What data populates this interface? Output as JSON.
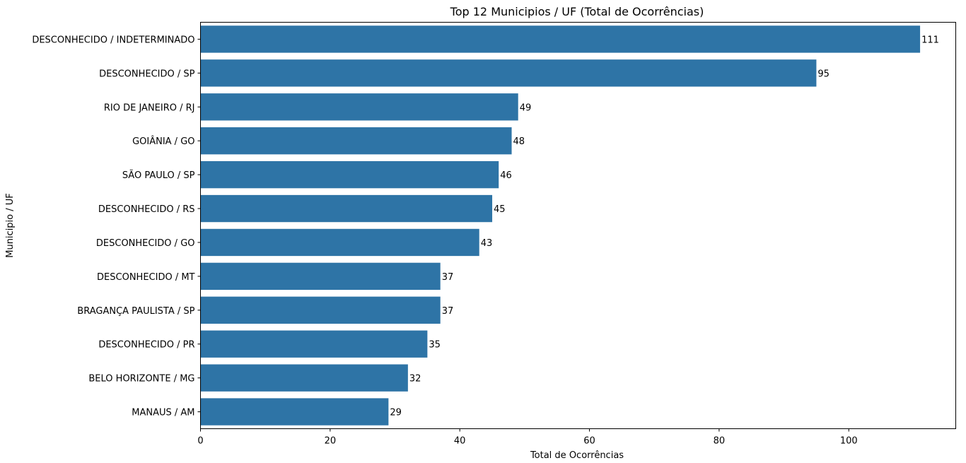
{
  "chart_data": {
    "type": "bar",
    "orientation": "horizontal",
    "title": "Top 12 Municipios / UF (Total de Ocorrências)",
    "xlabel": "Total de Ocorrências",
    "ylabel": "Municipio / UF",
    "categories": [
      "DESCONHECIDO / INDETERMINADO",
      "DESCONHECIDO / SP",
      "RIO DE JANEIRO / RJ",
      "GOIÂNIA / GO",
      "SÃO PAULO / SP",
      "DESCONHECIDO / RS",
      "DESCONHECIDO / GO",
      "DESCONHECIDO / MT",
      "BRAGANÇA PAULISTA / SP",
      "DESCONHECIDO / PR",
      "BELO HORIZONTE / MG",
      "MANAUS / AM"
    ],
    "values": [
      111,
      95,
      49,
      48,
      46,
      45,
      43,
      37,
      37,
      35,
      32,
      29
    ],
    "xlim": [
      0,
      116.5
    ],
    "xticks": [
      0,
      20,
      40,
      60,
      80,
      100
    ],
    "grid": false,
    "bar_color": "#2e74a6"
  }
}
